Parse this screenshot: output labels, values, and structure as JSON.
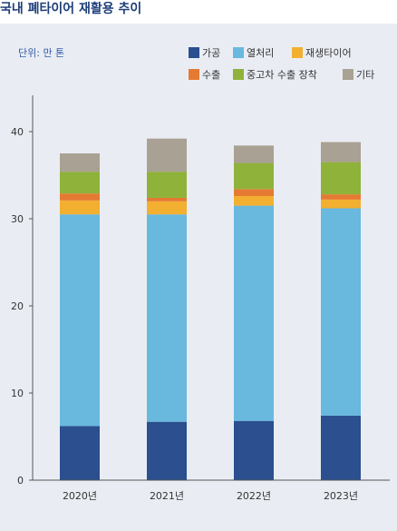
{
  "title": "국내 폐타이어 재활용 추이",
  "unit_label": "단위: 만 톤",
  "colors": {
    "panel_bg": "#e9edf3",
    "title": "#1f3f7a",
    "unit": "#2f5aa8",
    "axis": "#555555"
  },
  "chart_data": {
    "type": "bar",
    "stacked": true,
    "categories": [
      "2020년",
      "2021년",
      "2022년",
      "2023년"
    ],
    "series": [
      {
        "name": "가공",
        "color": "#2b4f8f",
        "values": [
          6.2,
          6.7,
          6.8,
          7.4
        ]
      },
      {
        "name": "열처리",
        "color": "#69b8de",
        "values": [
          24.3,
          23.8,
          24.7,
          23.8
        ]
      },
      {
        "name": "재생타이어",
        "color": "#f2af30",
        "values": [
          1.6,
          1.5,
          1.1,
          1.0
        ]
      },
      {
        "name": "수출",
        "color": "#e57a32",
        "values": [
          0.8,
          0.4,
          0.8,
          0.6
        ]
      },
      {
        "name": "중고차 수출 장착",
        "color": "#8fb23a",
        "values": [
          2.5,
          3.0,
          3.0,
          3.7
        ]
      },
      {
        "name": "기타",
        "color": "#a9a193",
        "values": [
          2.1,
          3.8,
          2.0,
          2.3
        ]
      }
    ],
    "ylim": [
      0,
      40
    ],
    "yticks": [
      0,
      10,
      20,
      30,
      40
    ],
    "xlabel": "",
    "ylabel": "",
    "legend_position": "top-right",
    "grid": false
  }
}
